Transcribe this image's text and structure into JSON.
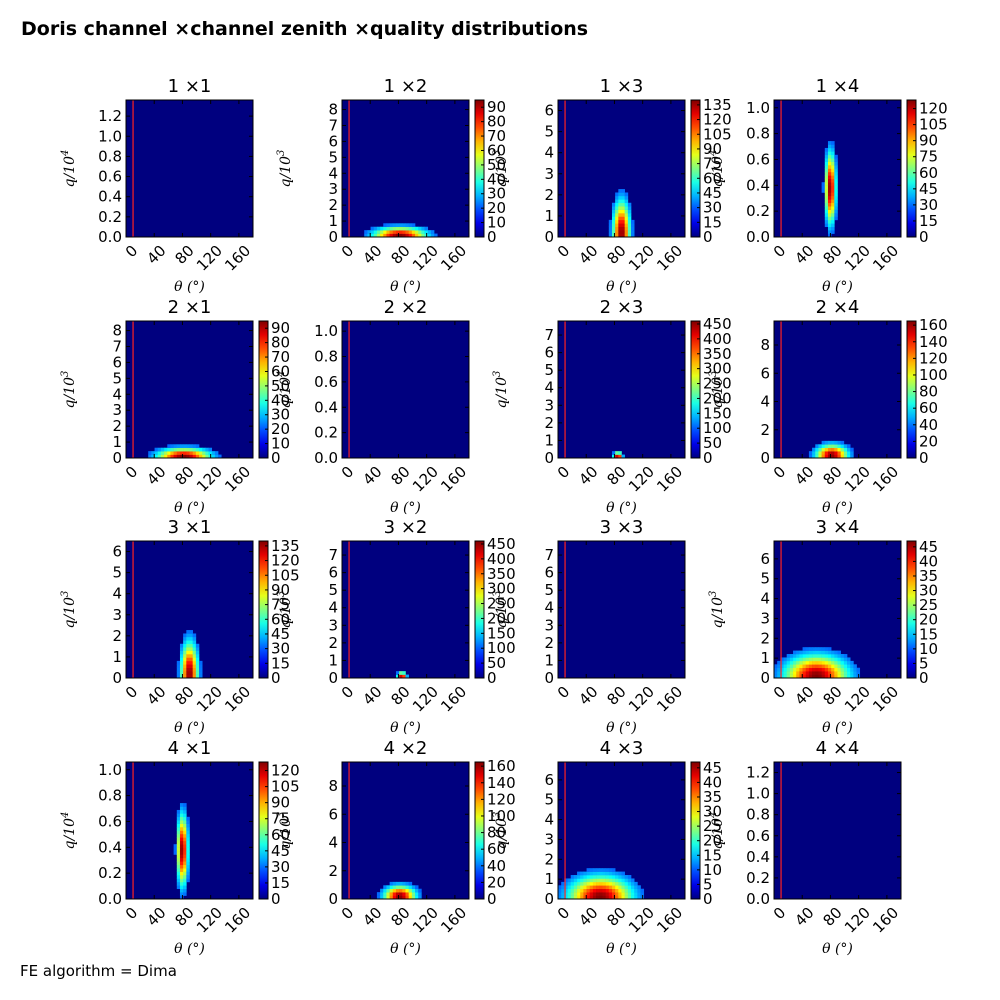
{
  "figure": {
    "title": "Doris channel ×channel zenith ×quality distributions",
    "footer": "FE algorithm = Dima"
  },
  "colors": {
    "background_low": "#00007f",
    "cut_line": "#ff2020"
  },
  "chart_data": [
    {
      "type": "heatmap",
      "title": "1  ×1",
      "xlabel": "θ (°)",
      "ylabel": "q/10^4",
      "yexp": "4",
      "xticks": [
        "0",
        "40",
        "80",
        "120",
        "160"
      ],
      "yticks": [
        "0.0",
        "0.2",
        "0.4",
        "0.6",
        "0.8",
        "1.0",
        "1.2"
      ],
      "ylim": [
        0,
        1.36
      ],
      "cut_theta": 10,
      "colorbar": null,
      "peak": null
    },
    {
      "type": "heatmap",
      "title": "1  ×2",
      "xlabel": "θ (°)",
      "ylabel": "q/10^3",
      "yexp": "3",
      "xticks": [
        "0",
        "40",
        "80",
        "120",
        "160"
      ],
      "yticks": [
        "0",
        "1",
        "2",
        "3",
        "4",
        "5",
        "6",
        "7",
        "8"
      ],
      "ylim": [
        0,
        8.6
      ],
      "cut_theta": 10,
      "colorbar": {
        "min": 0,
        "max": 95,
        "ticks": [
          "0",
          "10",
          "20",
          "30",
          "40",
          "50",
          "60",
          "70",
          "80",
          "90"
        ]
      },
      "peak": {
        "theta": 82,
        "q": 0.1,
        "spread_theta": 25,
        "spread_q": 0.35,
        "max": 95
      }
    },
    {
      "type": "heatmap",
      "title": "1  ×3",
      "xlabel": "θ (°)",
      "ylabel": "q/10^3",
      "yexp": "3",
      "xticks": [
        "0",
        "40",
        "80",
        "120",
        "160"
      ],
      "yticks": [
        "0",
        "1",
        "2",
        "3",
        "4",
        "5",
        "6"
      ],
      "ylim": [
        0,
        6.5
      ],
      "cut_theta": 10,
      "colorbar": {
        "min": 0,
        "max": 140,
        "ticks": [
          "0",
          "15",
          "30",
          "45",
          "60",
          "75",
          "90",
          "105",
          "120",
          "135"
        ]
      },
      "peak": {
        "theta": 90,
        "q": 0.2,
        "spread_theta": 8,
        "spread_q": 1.0,
        "max": 140
      }
    },
    {
      "type": "heatmap",
      "title": "1  ×4",
      "xlabel": "θ (°)",
      "ylabel": "q/10^4",
      "yexp": "4",
      "xticks": [
        "0",
        "40",
        "80",
        "120",
        "160"
      ],
      "yticks": [
        "0.0",
        "0.2",
        "0.4",
        "0.6",
        "0.8",
        "1.0"
      ],
      "ylim": [
        0,
        1.06
      ],
      "cut_theta": 10,
      "colorbar": {
        "min": 0,
        "max": 128,
        "ticks": [
          "0",
          "15",
          "30",
          "45",
          "60",
          "75",
          "90",
          "105",
          "120"
        ]
      },
      "peak": {
        "theta": 80,
        "q": 0.38,
        "spread_theta": 5,
        "spread_q": 0.18,
        "max": 128
      }
    },
    {
      "type": "heatmap",
      "title": "2  ×1",
      "xlabel": "θ (°)",
      "ylabel": "q/10^3",
      "yexp": "3",
      "xticks": [
        "0",
        "40",
        "80",
        "120",
        "160"
      ],
      "yticks": [
        "0",
        "1",
        "2",
        "3",
        "4",
        "5",
        "6",
        "7",
        "8"
      ],
      "ylim": [
        0,
        8.6
      ],
      "cut_theta": 10,
      "colorbar": {
        "min": 0,
        "max": 95,
        "ticks": [
          "0",
          "10",
          "20",
          "30",
          "40",
          "50",
          "60",
          "70",
          "80",
          "90"
        ]
      },
      "peak": {
        "theta": 82,
        "q": 0.1,
        "spread_theta": 25,
        "spread_q": 0.35,
        "max": 95
      }
    },
    {
      "type": "heatmap",
      "title": "2  ×2",
      "xlabel": "θ (°)",
      "ylabel": "q/10^4",
      "yexp": "4",
      "xticks": [
        "0",
        "40",
        "80",
        "120",
        "160"
      ],
      "yticks": [
        "0.0",
        "0.2",
        "0.4",
        "0.6",
        "0.8",
        "1.0"
      ],
      "ylim": [
        0,
        1.08
      ],
      "cut_theta": 10,
      "colorbar": null,
      "peak": null
    },
    {
      "type": "heatmap",
      "title": "2  ×3",
      "xlabel": "θ (°)",
      "ylabel": "q/10^3",
      "yexp": "3",
      "xticks": [
        "0",
        "40",
        "80",
        "120",
        "160"
      ],
      "yticks": [
        "0",
        "1",
        "2",
        "3",
        "4",
        "5",
        "6",
        "7"
      ],
      "ylim": [
        0,
        7.8
      ],
      "cut_theta": 10,
      "colorbar": {
        "min": 0,
        "max": 460,
        "ticks": [
          "0",
          "50",
          "100",
          "150",
          "200",
          "250",
          "300",
          "350",
          "400",
          "450"
        ]
      },
      "peak": {
        "theta": 85,
        "q": 0.1,
        "spread_theta": 4,
        "spread_q": 0.15,
        "max": 460
      }
    },
    {
      "type": "heatmap",
      "title": "2  ×4",
      "xlabel": "θ (°)",
      "ylabel": "q/10^3",
      "yexp": "3",
      "xticks": [
        "0",
        "40",
        "80",
        "120",
        "160"
      ],
      "yticks": [
        "0",
        "2",
        "4",
        "6",
        "8"
      ],
      "ylim": [
        0,
        9.7
      ],
      "cut_theta": 10,
      "colorbar": {
        "min": 0,
        "max": 165,
        "ticks": [
          "0",
          "20",
          "40",
          "60",
          "80",
          "100",
          "120",
          "140",
          "160"
        ]
      },
      "peak": {
        "theta": 82,
        "q": 0.2,
        "spread_theta": 15,
        "spread_q": 0.5,
        "max": 165
      }
    },
    {
      "type": "heatmap",
      "title": "3  ×1",
      "xlabel": "θ (°)",
      "ylabel": "q/10^3",
      "yexp": "3",
      "xticks": [
        "0",
        "40",
        "80",
        "120",
        "160"
      ],
      "yticks": [
        "0",
        "1",
        "2",
        "3",
        "4",
        "5",
        "6"
      ],
      "ylim": [
        0,
        6.5
      ],
      "cut_theta": 10,
      "colorbar": {
        "min": 0,
        "max": 140,
        "ticks": [
          "0",
          "15",
          "30",
          "45",
          "60",
          "75",
          "90",
          "105",
          "120",
          "135"
        ]
      },
      "peak": {
        "theta": 90,
        "q": 0.2,
        "spread_theta": 8,
        "spread_q": 1.0,
        "max": 140
      }
    },
    {
      "type": "heatmap",
      "title": "3  ×2",
      "xlabel": "θ (°)",
      "ylabel": "q/10^3",
      "yexp": "3",
      "xticks": [
        "0",
        "40",
        "80",
        "120",
        "160"
      ],
      "yticks": [
        "0",
        "1",
        "2",
        "3",
        "4",
        "5",
        "6",
        "7"
      ],
      "ylim": [
        0,
        7.8
      ],
      "cut_theta": 10,
      "colorbar": {
        "min": 0,
        "max": 460,
        "ticks": [
          "0",
          "50",
          "100",
          "150",
          "200",
          "250",
          "300",
          "350",
          "400",
          "450"
        ]
      },
      "peak": {
        "theta": 85,
        "q": 0.1,
        "spread_theta": 4,
        "spread_q": 0.15,
        "max": 460
      }
    },
    {
      "type": "heatmap",
      "title": "3  ×3",
      "xlabel": "θ (°)",
      "ylabel": "q/10^3",
      "yexp": "3",
      "xticks": [
        "0",
        "40",
        "80",
        "120",
        "160"
      ],
      "yticks": [
        "0",
        "1",
        "2",
        "3",
        "4",
        "5",
        "6",
        "7"
      ],
      "ylim": [
        0,
        7.8
      ],
      "cut_theta": 10,
      "colorbar": null,
      "peak": null
    },
    {
      "type": "heatmap",
      "title": "3  ×4",
      "xlabel": "θ (°)",
      "ylabel": "q/10^3",
      "yexp": "3",
      "xticks": [
        "0",
        "40",
        "80",
        "120",
        "160"
      ],
      "yticks": [
        "0",
        "1",
        "2",
        "3",
        "4",
        "5",
        "6"
      ],
      "ylim": [
        0,
        6.9
      ],
      "cut_theta": 10,
      "colorbar": {
        "min": 0,
        "max": 47,
        "ticks": [
          "0",
          "5",
          "10",
          "15",
          "20",
          "25",
          "30",
          "35",
          "40",
          "45"
        ]
      },
      "peak": {
        "theta": 60,
        "q": 0.1,
        "spread_theta": 30,
        "spread_q": 0.7,
        "max": 47
      }
    },
    {
      "type": "heatmap",
      "title": "4  ×1",
      "xlabel": "θ (°)",
      "ylabel": "q/10^4",
      "yexp": "4",
      "xticks": [
        "0",
        "40",
        "80",
        "120",
        "160"
      ],
      "yticks": [
        "0.0",
        "0.2",
        "0.4",
        "0.6",
        "0.8",
        "1.0"
      ],
      "ylim": [
        0,
        1.06
      ],
      "cut_theta": 10,
      "colorbar": {
        "min": 0,
        "max": 128,
        "ticks": [
          "0",
          "15",
          "30",
          "45",
          "60",
          "75",
          "90",
          "105",
          "120"
        ]
      },
      "peak": {
        "theta": 80,
        "q": 0.38,
        "spread_theta": 5,
        "spread_q": 0.18,
        "max": 128
      }
    },
    {
      "type": "heatmap",
      "title": "4  ×2",
      "xlabel": "θ (°)",
      "ylabel": "q/10^3",
      "yexp": "3",
      "xticks": [
        "0",
        "40",
        "80",
        "120",
        "160"
      ],
      "yticks": [
        "0",
        "2",
        "4",
        "6",
        "8"
      ],
      "ylim": [
        0,
        9.7
      ],
      "cut_theta": 10,
      "colorbar": {
        "min": 0,
        "max": 165,
        "ticks": [
          "0",
          "20",
          "40",
          "60",
          "80",
          "100",
          "120",
          "140",
          "160"
        ]
      },
      "peak": {
        "theta": 82,
        "q": 0.2,
        "spread_theta": 15,
        "spread_q": 0.5,
        "max": 165
      }
    },
    {
      "type": "heatmap",
      "title": "4  ×3",
      "xlabel": "θ (°)",
      "ylabel": "q/10^3",
      "yexp": "3",
      "xticks": [
        "0",
        "40",
        "80",
        "120",
        "160"
      ],
      "yticks": [
        "0",
        "1",
        "2",
        "3",
        "4",
        "5",
        "6"
      ],
      "ylim": [
        0,
        6.9
      ],
      "cut_theta": 10,
      "colorbar": {
        "min": 0,
        "max": 47,
        "ticks": [
          "0",
          "5",
          "10",
          "15",
          "20",
          "25",
          "30",
          "35",
          "40",
          "45"
        ]
      },
      "peak": {
        "theta": 60,
        "q": 0.1,
        "spread_theta": 30,
        "spread_q": 0.7,
        "max": 47
      }
    },
    {
      "type": "heatmap",
      "title": "4  ×4",
      "xlabel": "θ (°)",
      "ylabel": "q/10^4",
      "yexp": "4",
      "xticks": [
        "0",
        "40",
        "80",
        "120",
        "160"
      ],
      "yticks": [
        "0.0",
        "0.2",
        "0.4",
        "0.6",
        "0.8",
        "1.0",
        "1.2"
      ],
      "ylim": [
        0,
        1.3
      ],
      "cut_theta": 10,
      "colorbar": null,
      "peak": null
    }
  ]
}
